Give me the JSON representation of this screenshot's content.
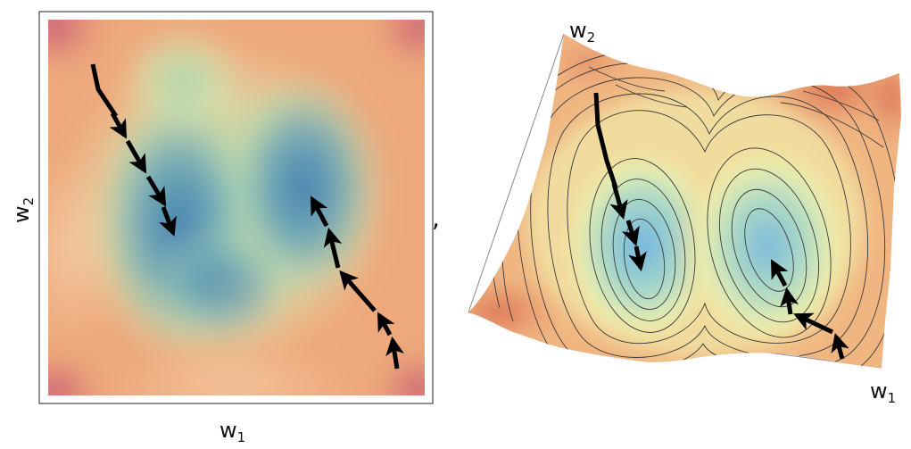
{
  "left_panel": {
    "x_axis_label": "w",
    "x_axis_subscript": "1",
    "y_axis_label": "w",
    "y_axis_subscript": "2",
    "colormap": [
      "#3d7cb0",
      "#7db7b8",
      "#b6dcb0",
      "#f0d9a2",
      "#e59a6c",
      "#c85a78"
    ]
  },
  "separator": ",",
  "right_panel": {
    "x_axis_label": "w",
    "x_axis_subscript": "1",
    "y_axis_label": "w",
    "y_axis_subscript": "2",
    "colormap": [
      "#6fb0de",
      "#a8d8c2",
      "#f4ecaa",
      "#f2b27a",
      "#d9704f"
    ]
  },
  "trajectories": [
    {
      "name": "left-path-1"
    },
    {
      "name": "left-path-2"
    },
    {
      "name": "right-path-1"
    },
    {
      "name": "right-path-2"
    }
  ]
}
